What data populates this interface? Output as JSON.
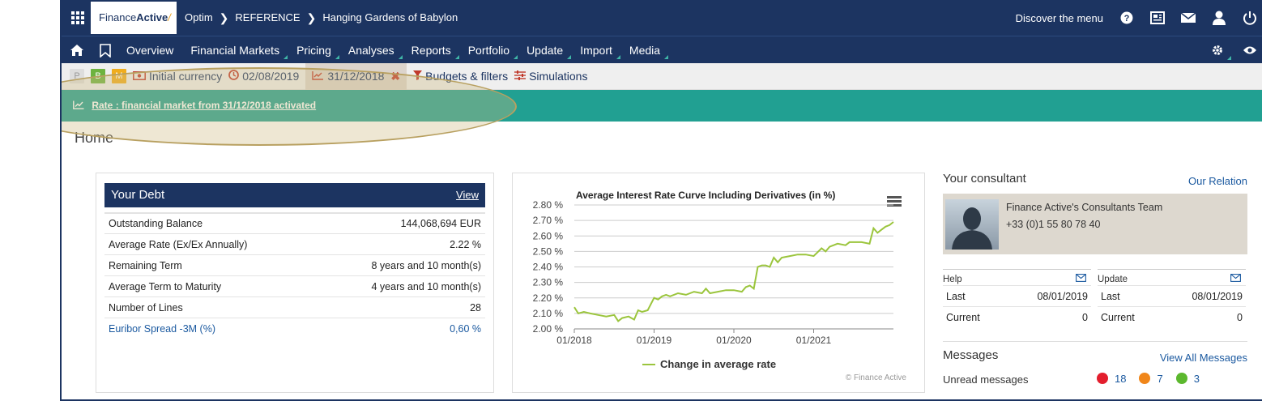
{
  "topbar": {
    "logo_text_a": "Finance",
    "logo_text_b": "Active",
    "crumbs": [
      "Optim",
      "REFERENCE",
      "Hanging Gardens of Babylon"
    ],
    "discover": "Discover the menu"
  },
  "nav": {
    "items": [
      "Overview",
      "Financial Markets",
      "Pricing",
      "Analyses",
      "Reports",
      "Portfolio",
      "Update",
      "Import",
      "Media"
    ]
  },
  "filters": {
    "p": "P",
    "b": "B",
    "m": "M",
    "currency": "Initial currency",
    "date1": "02/08/2019",
    "date2": "31/12/2018",
    "budgets": "Budgets & filters",
    "simulations": "Simulations"
  },
  "banner": {
    "text": "Rate : financial market from 31/12/2018 activated"
  },
  "home": {
    "title": "Home"
  },
  "debt": {
    "title": "Your Debt",
    "view": "View",
    "rows": [
      {
        "label": "Outstanding Balance",
        "value": "144,068,694 EUR"
      },
      {
        "label": "Average Rate (Ex/Ex Annually)",
        "value": "2.22 %"
      },
      {
        "label": "Remaining Term",
        "value": "8 years and 10 month(s)"
      },
      {
        "label": "Average Term to Maturity",
        "value": "4 years and 10 month(s)"
      },
      {
        "label": "Number of Lines",
        "value": "28"
      },
      {
        "label": "Euribor Spread -3M (%)",
        "value": "0,60 %"
      }
    ]
  },
  "chart_data": {
    "type": "line",
    "title": "Average Interest Rate Curve Including Derivatives (in %)",
    "y_ticks": [
      "2.80 %",
      "2.70 %",
      "2.60 %",
      "2.50 %",
      "2.40 %",
      "2.30 %",
      "2.20 %",
      "2.10 %",
      "2.00 %"
    ],
    "x_ticks": [
      "01/2018",
      "01/2019",
      "01/2020",
      "01/2021"
    ],
    "ylim": [
      2.0,
      2.8
    ],
    "series": [
      {
        "name": "Change in average rate",
        "color": "#9bc53d",
        "x": [
          2018.0,
          2018.05,
          2018.12,
          2018.2,
          2018.3,
          2018.4,
          2018.5,
          2018.55,
          2018.6,
          2018.68,
          2018.75,
          2018.8,
          2018.85,
          2018.92,
          2019.0,
          2019.05,
          2019.1,
          2019.15,
          2019.2,
          2019.3,
          2019.4,
          2019.5,
          2019.6,
          2019.65,
          2019.7,
          2019.8,
          2019.9,
          2020.0,
          2020.1,
          2020.15,
          2020.2,
          2020.25,
          2020.3,
          2020.35,
          2020.4,
          2020.45,
          2020.5,
          2020.55,
          2020.6,
          2020.7,
          2020.8,
          2020.9,
          2021.0,
          2021.1,
          2021.15,
          2021.2,
          2021.3,
          2021.4,
          2021.45,
          2021.5,
          2021.6,
          2021.7,
          2021.75,
          2021.8,
          2021.85,
          2021.9,
          2021.95,
          2022.0
        ],
        "y": [
          2.14,
          2.1,
          2.11,
          2.1,
          2.09,
          2.08,
          2.09,
          2.05,
          2.07,
          2.08,
          2.06,
          2.12,
          2.11,
          2.12,
          2.2,
          2.19,
          2.21,
          2.22,
          2.21,
          2.23,
          2.22,
          2.24,
          2.23,
          2.26,
          2.23,
          2.24,
          2.25,
          2.25,
          2.24,
          2.27,
          2.28,
          2.26,
          2.4,
          2.41,
          2.41,
          2.4,
          2.46,
          2.43,
          2.46,
          2.47,
          2.48,
          2.48,
          2.47,
          2.52,
          2.5,
          2.53,
          2.55,
          2.54,
          2.56,
          2.56,
          2.56,
          2.55,
          2.65,
          2.62,
          2.64,
          2.66,
          2.67,
          2.69
        ]
      }
    ],
    "credit": "© Finance Active"
  },
  "consultant": {
    "title": "Your consultant",
    "relation": "Our Relation",
    "name": "Finance Active's Consultants Team",
    "phone": "+33 (0)1 55 80 78 40"
  },
  "help": {
    "title": "Help",
    "last_label": "Last",
    "last": "08/01/2019",
    "current_label": "Current",
    "current": "0"
  },
  "update": {
    "title": "Update",
    "last_label": "Last",
    "last": "08/01/2019",
    "current_label": "Current",
    "current": "0"
  },
  "messages": {
    "title": "Messages",
    "view_all": "View All Messages",
    "unread": "Unread messages",
    "counts": [
      {
        "value": "18",
        "color": "#e31e2d"
      },
      {
        "value": "7",
        "color": "#f0861a"
      },
      {
        "value": "3",
        "color": "#5cb82e"
      }
    ]
  }
}
